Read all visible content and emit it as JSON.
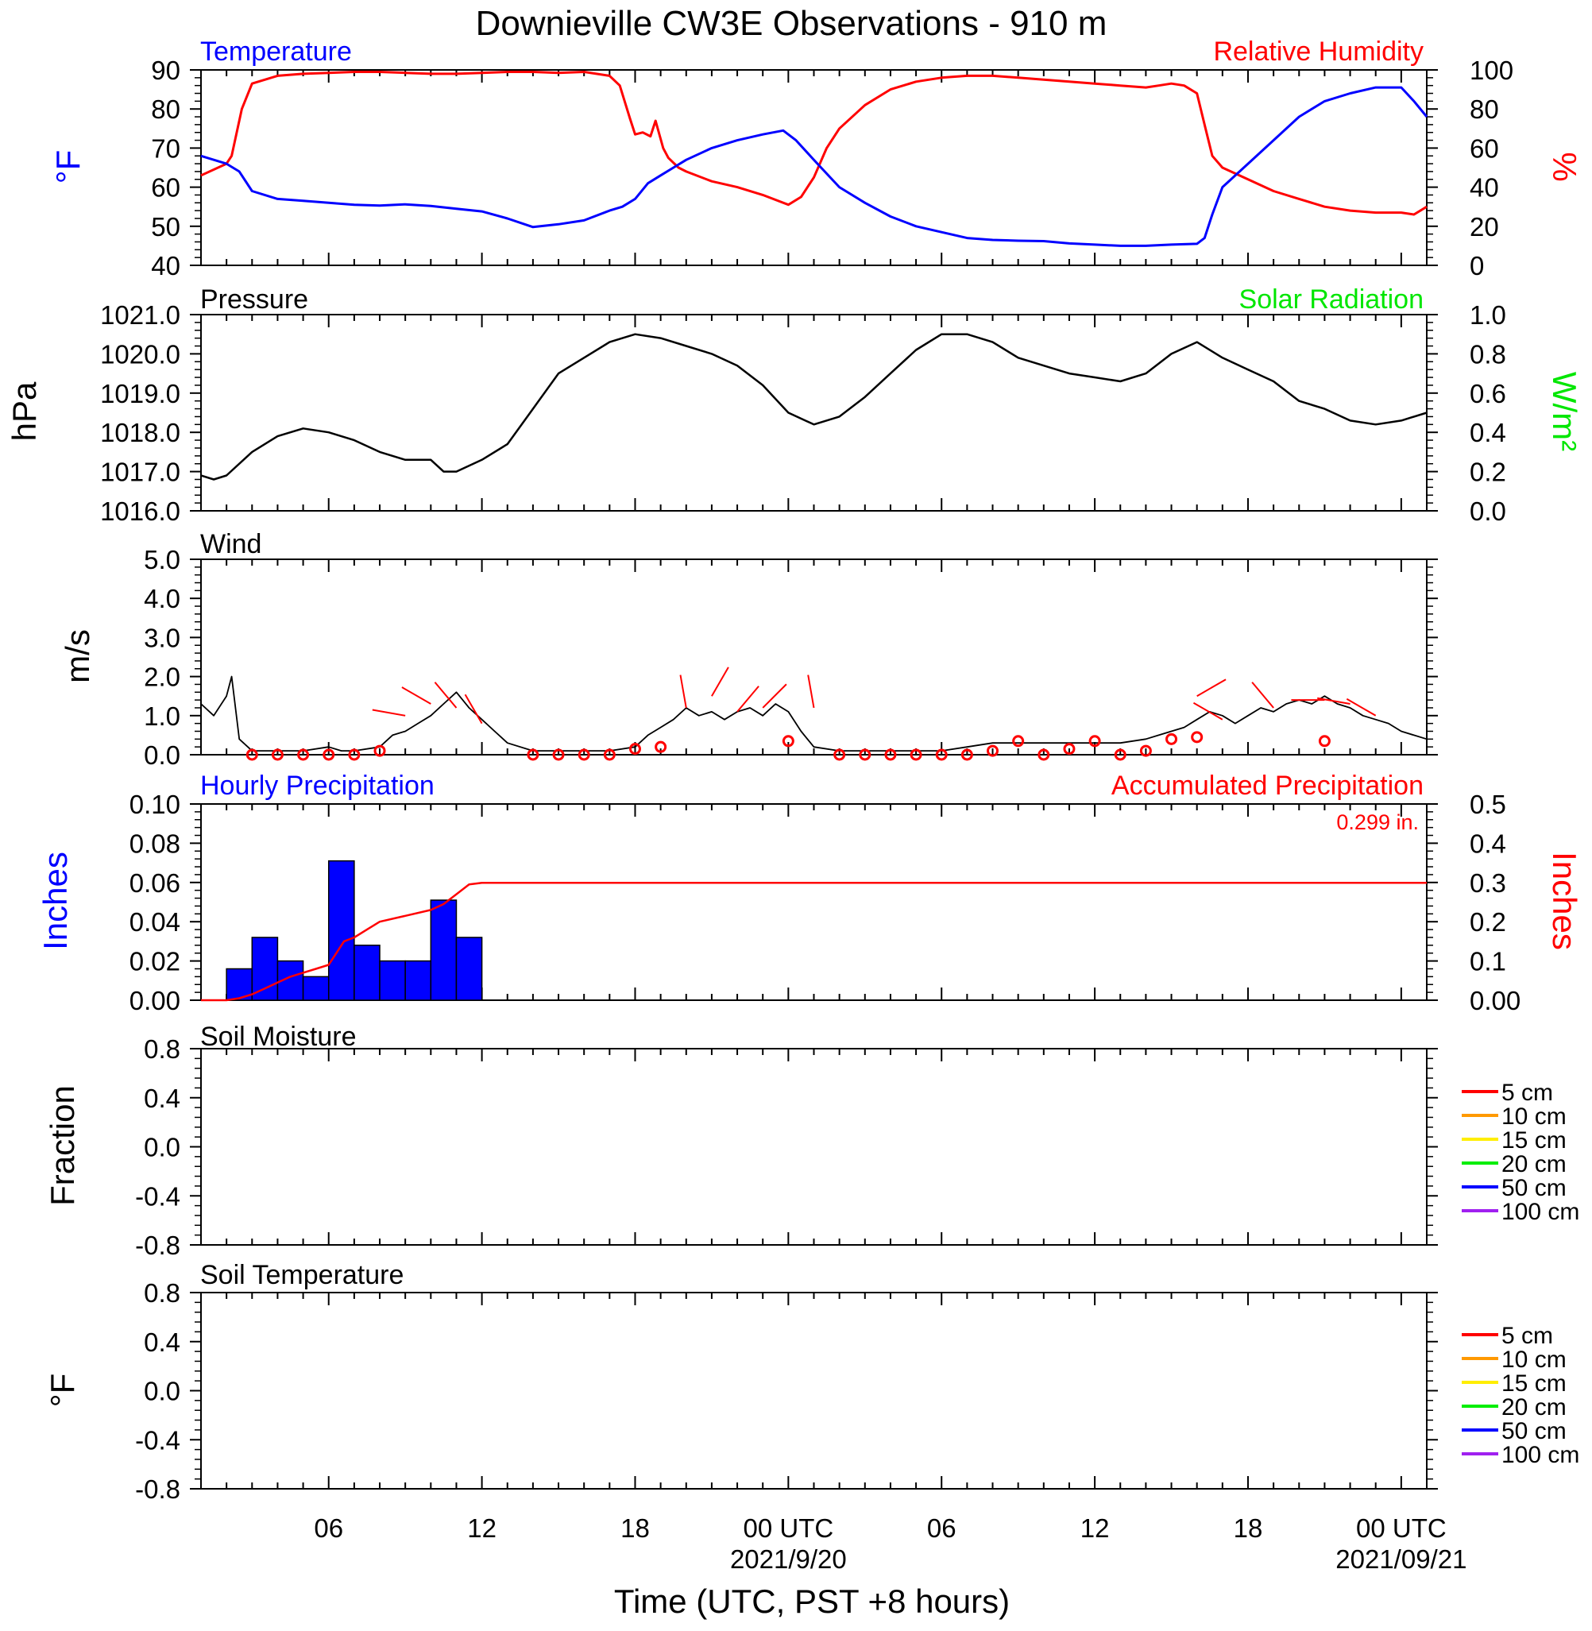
{
  "title": "Downieville CW3E Observations - 910 m",
  "x_axis": {
    "title": "Time (UTC, PST +8 hours)",
    "ticks": [
      {
        "hour": 6,
        "label": "06"
      },
      {
        "hour": 12,
        "label": "12"
      },
      {
        "hour": 18,
        "label": "18"
      },
      {
        "hour": 24,
        "label": "00 UTC",
        "date": "2021/9/20"
      },
      {
        "hour": 30,
        "label": "06"
      },
      {
        "hour": 36,
        "label": "12"
      },
      {
        "hour": 42,
        "label": "18"
      },
      {
        "hour": 48,
        "label": "00 UTC",
        "date": "2021/09/21"
      }
    ],
    "range_hours": [
      1,
      49
    ]
  },
  "colors": {
    "temperature": "#0000ff",
    "humidity": "#ff0000",
    "pressure": "#000000",
    "solar": "#00e600",
    "wind": "#000000",
    "wind_markers": "#ff0000",
    "hourly_precip": "#0000ff",
    "accum_precip": "#ff0000"
  },
  "chart_data": [
    {
      "id": "temp_rh",
      "type": "line",
      "title_left": "Temperature",
      "title_right": "Relative Humidity",
      "ylabel_left": "°F",
      "ylabel_right": "%",
      "ylim_left": [
        40,
        90
      ],
      "ylim_right": [
        0,
        100
      ],
      "yticks_left": [
        "40",
        "50",
        "60",
        "70",
        "80",
        "90"
      ],
      "yticks_right": [
        "0",
        "20",
        "40",
        "60",
        "80",
        "100"
      ],
      "series": [
        {
          "name": "Temperature",
          "axis": "left",
          "x": [
            1,
            2,
            2.5,
            3,
            4,
            5,
            6,
            7,
            8,
            9,
            10,
            11,
            12,
            13,
            14,
            15,
            16,
            17,
            17.5,
            18,
            18.5,
            19,
            19.5,
            20,
            21,
            22,
            23,
            23.8,
            24.3,
            25,
            26,
            27,
            28,
            29,
            30,
            31,
            32,
            33,
            34,
            35,
            36,
            37,
            38,
            39,
            40,
            40.3,
            40.6,
            41,
            42,
            43,
            44,
            45,
            46,
            47,
            48,
            48.5,
            49
          ],
          "y": [
            68,
            66,
            64,
            59,
            57,
            56.5,
            56,
            55.5,
            55.3,
            55.6,
            55.2,
            54.5,
            53.8,
            52,
            49.8,
            50.5,
            51.5,
            54,
            55,
            57,
            61,
            63,
            65,
            67,
            70,
            72,
            73.5,
            74.5,
            72,
            67,
            60,
            56,
            52.5,
            50,
            48.5,
            47,
            46.5,
            46.3,
            46.2,
            45.6,
            45.3,
            45,
            45,
            45.3,
            45.5,
            47,
            53,
            60,
            66,
            72,
            78,
            82,
            84,
            85.5,
            85.5,
            82,
            78
          ]
        },
        {
          "name": "Relative Humidity",
          "axis": "right",
          "x": [
            1,
            2,
            2.2,
            2.6,
            3,
            4,
            5,
            6,
            7,
            8,
            9,
            10,
            11,
            12,
            13,
            14,
            15,
            16,
            17,
            17.4,
            17.8,
            18,
            18.3,
            18.6,
            18.8,
            19.1,
            19.3,
            19.7,
            20,
            21,
            22,
            23,
            24,
            24.5,
            25,
            25.5,
            26,
            27,
            28,
            29,
            30,
            31,
            32,
            33,
            34,
            35,
            36,
            37,
            38,
            38.5,
            39,
            39.5,
            40,
            40.3,
            40.6,
            41,
            42,
            43,
            44,
            45,
            46,
            47,
            48,
            48.5,
            49
          ],
          "y": [
            46,
            52,
            56,
            80,
            93,
            97,
            98,
            98.5,
            99,
            99,
            98.5,
            98,
            98,
            98.5,
            99,
            99,
            98.5,
            99,
            97,
            92,
            75,
            67,
            68,
            66,
            74,
            60,
            55,
            50,
            48,
            43,
            40,
            36,
            31,
            35,
            45,
            60,
            70,
            82,
            90,
            94,
            96,
            97,
            97,
            96,
            95,
            94,
            93,
            92,
            91,
            92,
            93,
            92,
            88,
            72,
            56,
            50,
            44,
            38,
            34,
            30,
            28,
            27,
            27,
            26,
            30
          ]
        }
      ]
    },
    {
      "id": "pressure_solar",
      "type": "line",
      "title_left": "Pressure",
      "title_right": "Solar Radiation",
      "ylabel_left": "hPa",
      "ylabel_right": "W/m²",
      "ylim_left": [
        1016,
        1021
      ],
      "ylim_right": [
        0,
        1
      ],
      "yticks_left": [
        "1016.0",
        "1017.0",
        "1018.0",
        "1019.0",
        "1020.0",
        "1021.0"
      ],
      "yticks_right": [
        "0.0",
        "0.2",
        "0.4",
        "0.6",
        "0.8",
        "1.0"
      ],
      "series": [
        {
          "name": "Pressure",
          "axis": "left",
          "x": [
            1,
            1.5,
            2,
            3,
            4,
            5,
            6,
            7,
            8,
            9,
            10,
            10.5,
            11,
            12,
            13,
            14,
            15,
            16,
            17,
            18,
            19,
            20,
            21,
            22,
            23,
            24,
            25,
            26,
            27,
            28,
            29,
            30,
            31,
            32,
            33,
            34,
            35,
            36,
            37,
            38,
            39,
            40,
            41,
            42,
            43,
            44,
            45,
            46,
            47,
            48,
            49
          ],
          "y": [
            1016.9,
            1016.8,
            1016.9,
            1017.5,
            1017.9,
            1018.1,
            1018.0,
            1017.8,
            1017.5,
            1017.3,
            1017.3,
            1017.0,
            1017.0,
            1017.3,
            1017.7,
            1018.6,
            1019.5,
            1019.9,
            1020.3,
            1020.5,
            1020.4,
            1020.2,
            1020.0,
            1019.7,
            1019.2,
            1018.5,
            1018.2,
            1018.4,
            1018.9,
            1019.5,
            1020.1,
            1020.5,
            1020.5,
            1020.3,
            1019.9,
            1019.7,
            1019.5,
            1019.4,
            1019.3,
            1019.5,
            1020.0,
            1020.3,
            1019.9,
            1019.6,
            1019.3,
            1018.8,
            1018.6,
            1018.3,
            1018.2,
            1018.3,
            1018.5
          ]
        }
      ]
    },
    {
      "id": "wind",
      "type": "line",
      "title_left": "Wind",
      "ylabel_left": "m/s",
      "ylim_left": [
        0,
        5
      ],
      "yticks_left": [
        "0.0",
        "1.0",
        "2.0",
        "3.0",
        "4.0",
        "5.0"
      ],
      "series": [
        {
          "name": "Wind",
          "axis": "left",
          "x": [
            1,
            1.5,
            2,
            2.2,
            2.5,
            3,
            4,
            5,
            6,
            6.5,
            7,
            8,
            8.5,
            9,
            9.5,
            10,
            10.5,
            11,
            11.5,
            12,
            12.5,
            13,
            14,
            15,
            16,
            17,
            18,
            18.5,
            19,
            19.5,
            20,
            20.5,
            21,
            21.5,
            22,
            22.5,
            23,
            23.5,
            24,
            24.5,
            25,
            26,
            27,
            28,
            29,
            30,
            31,
            32,
            33,
            34,
            35,
            36,
            37,
            38,
            38.5,
            39,
            39.5,
            40,
            40.5,
            41,
            41.5,
            42,
            42.5,
            43,
            43.5,
            44,
            44.5,
            45,
            45.5,
            46,
            46.5,
            47,
            47.5,
            48,
            48.5,
            49
          ],
          "y": [
            1.3,
            1.0,
            1.5,
            2.0,
            0.4,
            0.1,
            0.1,
            0.1,
            0.2,
            0.1,
            0.1,
            0.2,
            0.5,
            0.6,
            0.8,
            1.0,
            1.3,
            1.6,
            1.2,
            0.9,
            0.6,
            0.3,
            0.1,
            0.1,
            0.1,
            0.1,
            0.2,
            0.5,
            0.7,
            0.9,
            1.2,
            1.0,
            1.1,
            0.9,
            1.1,
            1.2,
            1.0,
            1.3,
            1.1,
            0.6,
            0.2,
            0.1,
            0.1,
            0.1,
            0.1,
            0.1,
            0.2,
            0.3,
            0.3,
            0.3,
            0.3,
            0.3,
            0.3,
            0.4,
            0.5,
            0.6,
            0.7,
            0.9,
            1.1,
            1.0,
            0.8,
            1.0,
            1.2,
            1.1,
            1.3,
            1.4,
            1.3,
            1.5,
            1.3,
            1.2,
            1.0,
            0.9,
            0.8,
            0.6,
            0.5,
            0.4
          ]
        }
      ],
      "markers": {
        "hour": [
          3,
          4,
          5,
          6,
          7,
          8,
          14,
          15,
          16,
          17,
          18,
          19,
          24,
          26,
          27,
          28,
          29,
          30,
          31,
          32,
          33,
          34,
          35,
          36,
          37,
          38,
          39,
          40,
          45
        ],
        "speed": [
          0.0,
          0.0,
          0.0,
          0.0,
          0.0,
          0.1,
          0.0,
          0.0,
          0.0,
          0.0,
          0.15,
          0.2,
          0.35,
          0.0,
          0.0,
          0.0,
          0.0,
          0.0,
          0.0,
          0.1,
          0.35,
          0.0,
          0.15,
          0.35,
          0.0,
          0.1,
          0.4,
          0.45,
          0.35
        ]
      },
      "barbs": {
        "hour": [
          9,
          10,
          11,
          12,
          20,
          21,
          22,
          23,
          25,
          40,
          41,
          43,
          45,
          46,
          47
        ],
        "speed": [
          1.0,
          1.3,
          1.2,
          0.8,
          1.2,
          1.5,
          1.1,
          1.2,
          1.2,
          1.5,
          0.9,
          1.2,
          1.4,
          1.3,
          1.0
        ],
        "dir_deg": [
          280,
          300,
          320,
          330,
          350,
          30,
          40,
          45,
          350,
          60,
          300,
          320,
          270,
          280,
          300
        ]
      }
    },
    {
      "id": "precip",
      "type": "bar",
      "title_left": "Hourly Precipitation",
      "title_right": "Accumulated Precipitation",
      "annotation": "0.299 in.",
      "ylabel_left": "Inches",
      "ylabel_right": "Inches",
      "ylim_left": [
        0,
        0.1
      ],
      "ylim_right": [
        0,
        0.5
      ],
      "yticks_left": [
        "0.00",
        "0.02",
        "0.04",
        "0.06",
        "0.08",
        "0.10"
      ],
      "yticks_right": [
        "0.00",
        "0.1",
        "0.2",
        "0.3",
        "0.4",
        "0.5"
      ],
      "hourly": {
        "start_hour": [
          2,
          3,
          4,
          5,
          6,
          7,
          8,
          9,
          10,
          11
        ],
        "values": [
          0.016,
          0.032,
          0.02,
          0.012,
          0.071,
          0.028,
          0.02,
          0.02,
          0.051,
          0.032
        ]
      },
      "accumulated": {
        "x": [
          1,
          2,
          2.5,
          3,
          3.5,
          4,
          4.5,
          5,
          5.5,
          6,
          6.3,
          6.6,
          7,
          7.5,
          8,
          9,
          10,
          10.5,
          11,
          11.5,
          12,
          49
        ],
        "y": [
          0,
          0,
          0.005,
          0.015,
          0.03,
          0.045,
          0.06,
          0.07,
          0.08,
          0.09,
          0.12,
          0.15,
          0.16,
          0.18,
          0.2,
          0.215,
          0.23,
          0.245,
          0.27,
          0.295,
          0.299,
          0.299
        ]
      }
    },
    {
      "id": "soil_moisture",
      "type": "line",
      "title_left": "Soil Moisture",
      "ylabel_left": "Fraction",
      "ylim_left": [
        -1,
        1
      ],
      "yticks_left": [
        "-0.8",
        "-0.4",
        "0.0",
        "0.4",
        "0.8"
      ],
      "legend": [
        {
          "name": "5 cm",
          "color": "#ff0000"
        },
        {
          "name": "10 cm",
          "color": "#ff9900"
        },
        {
          "name": "15 cm",
          "color": "#ffee00"
        },
        {
          "name": "20 cm",
          "color": "#00ee00"
        },
        {
          "name": "50 cm",
          "color": "#0000ff"
        },
        {
          "name": "100 cm",
          "color": "#a020f0"
        }
      ],
      "series": []
    },
    {
      "id": "soil_temperature",
      "type": "line",
      "title_left": "Soil Temperature",
      "ylabel_left": "°F",
      "ylim_left": [
        -1,
        1
      ],
      "yticks_left": [
        "-0.8",
        "-0.4",
        "0.0",
        "0.4",
        "0.8"
      ],
      "legend": [
        {
          "name": "5 cm",
          "color": "#ff0000"
        },
        {
          "name": "10 cm",
          "color": "#ff9900"
        },
        {
          "name": "15 cm",
          "color": "#ffee00"
        },
        {
          "name": "20 cm",
          "color": "#00ee00"
        },
        {
          "name": "50 cm",
          "color": "#0000ff"
        },
        {
          "name": "100 cm",
          "color": "#a020f0"
        }
      ],
      "series": []
    }
  ]
}
